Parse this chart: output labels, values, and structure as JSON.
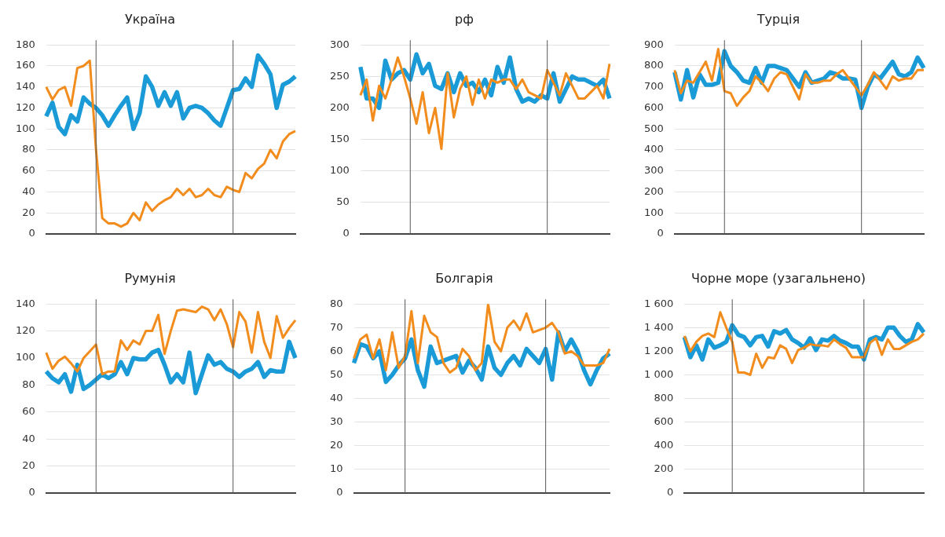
{
  "chart_data": [
    {
      "type": "line",
      "title": "Україна",
      "categories": [
        null,
        null,
        null,
        null,
        null,
        null,
        null,
        null,
        null,
        null,
        null,
        null,
        null,
        null,
        null,
        null,
        null,
        null,
        null,
        null,
        null,
        null,
        null,
        null,
        null,
        null,
        null,
        null,
        null,
        null,
        null,
        null,
        null,
        null,
        null,
        null,
        null,
        null,
        null,
        null,
        null
      ],
      "ylim": [
        0,
        180
      ],
      "yticks": [
        0,
        20,
        40,
        60,
        80,
        100,
        120,
        140,
        160,
        180
      ],
      "grid": "y",
      "legend": false,
      "tick_labels": "y",
      "marker": "none",
      "line_style": "solid",
      "series": [
        {
          "color": "#1a9bd7",
          "values": [
            112,
            125,
            102,
            95,
            113,
            107,
            130,
            124,
            120,
            113,
            103,
            113,
            122,
            130,
            100,
            115,
            150,
            140,
            122,
            135,
            122,
            135,
            110,
            120,
            122,
            120,
            115,
            108,
            103,
            120,
            137,
            138,
            148,
            140,
            170,
            162,
            152,
            120,
            142,
            145,
            150
          ]
        },
        {
          "color": "#f28c1c",
          "values": [
            140,
            128,
            137,
            140,
            122,
            158,
            160,
            165,
            80,
            15,
            10,
            10,
            7,
            10,
            20,
            13,
            30,
            22,
            28,
            32,
            35,
            43,
            37,
            43,
            35,
            37,
            43,
            37,
            35,
            45,
            42,
            40,
            58,
            53,
            62,
            67,
            80,
            72,
            88,
            95,
            98
          ]
        }
      ]
    },
    {
      "type": "line",
      "title": "рф",
      "categories": [
        null,
        null,
        null,
        null,
        null,
        null,
        null,
        null,
        null,
        null,
        null,
        null,
        null,
        null,
        null,
        null,
        null,
        null,
        null,
        null,
        null,
        null,
        null,
        null,
        null,
        null,
        null,
        null,
        null,
        null,
        null,
        null,
        null,
        null,
        null,
        null,
        null,
        null,
        null,
        null,
        null
      ],
      "ylim": [
        0,
        300
      ],
      "yticks": [
        0,
        50,
        100,
        150,
        200,
        250,
        300
      ],
      "grid": "y",
      "legend": false,
      "tick_labels": "y",
      "marker": "none",
      "line_style": "solid",
      "series": [
        {
          "color": "#1a9bd7",
          "values": [
            265,
            215,
            215,
            200,
            275,
            245,
            255,
            260,
            245,
            285,
            255,
            270,
            235,
            230,
            255,
            225,
            255,
            235,
            240,
            225,
            245,
            220,
            265,
            240,
            280,
            230,
            210,
            215,
            210,
            220,
            215,
            255,
            210,
            230,
            250,
            245,
            245,
            240,
            235,
            245,
            215
          ]
        },
        {
          "color": "#f28c1c",
          "values": [
            220,
            245,
            180,
            235,
            215,
            245,
            280,
            250,
            215,
            175,
            225,
            160,
            200,
            135,
            255,
            185,
            230,
            250,
            205,
            245,
            215,
            245,
            240,
            245,
            245,
            230,
            245,
            225,
            220,
            215,
            260,
            240,
            220,
            255,
            235,
            215,
            215,
            225,
            235,
            215,
            270
          ]
        }
      ]
    },
    {
      "type": "line",
      "title": "Турція",
      "categories": [
        null,
        null,
        null,
        null,
        null,
        null,
        null,
        null,
        null,
        null,
        null,
        null,
        null,
        null,
        null,
        null,
        null,
        null,
        null,
        null,
        null,
        null,
        null,
        null,
        null,
        null,
        null,
        null,
        null,
        null,
        null,
        null,
        null,
        null,
        null,
        null,
        null,
        null,
        null,
        null,
        null
      ],
      "ylim": [
        0,
        900
      ],
      "yticks": [
        0,
        100,
        200,
        300,
        400,
        500,
        600,
        700,
        800,
        900
      ],
      "grid": "y",
      "legend": false,
      "tick_labels": "y",
      "marker": "none",
      "line_style": "solid",
      "series": [
        {
          "color": "#1a9bd7",
          "values": [
            770,
            640,
            780,
            650,
            760,
            710,
            710,
            720,
            870,
            800,
            770,
            730,
            720,
            790,
            720,
            800,
            800,
            790,
            780,
            740,
            700,
            770,
            720,
            730,
            740,
            770,
            760,
            740,
            740,
            735,
            600,
            700,
            760,
            740,
            780,
            820,
            760,
            750,
            770,
            840,
            790
          ]
        },
        {
          "color": "#f28c1c",
          "values": [
            780,
            670,
            730,
            720,
            770,
            820,
            730,
            880,
            680,
            670,
            610,
            650,
            680,
            750,
            720,
            680,
            740,
            770,
            760,
            700,
            640,
            760,
            720,
            720,
            730,
            730,
            760,
            780,
            740,
            700,
            660,
            710,
            770,
            730,
            690,
            750,
            730,
            740,
            740,
            780,
            780
          ]
        }
      ]
    },
    {
      "type": "line",
      "title": "Румунія",
      "categories": [
        null,
        null,
        null,
        null,
        null,
        null,
        null,
        null,
        null,
        null,
        null,
        null,
        null,
        null,
        null,
        null,
        null,
        null,
        null,
        null,
        null,
        null,
        null,
        null,
        null,
        null,
        null,
        null,
        null,
        null,
        null,
        null,
        null,
        null,
        null,
        null,
        null,
        null,
        null,
        null,
        null
      ],
      "ylim": [
        0,
        140
      ],
      "yticks": [
        0,
        20,
        40,
        60,
        80,
        100,
        120,
        140
      ],
      "grid": "y",
      "legend": false,
      "tick_labels": "y",
      "marker": "none",
      "line_style": "solid",
      "series": [
        {
          "color": "#1a9bd7",
          "values": [
            90,
            85,
            82,
            88,
            75,
            95,
            77,
            80,
            84,
            88,
            85,
            88,
            97,
            88,
            100,
            99,
            99,
            104,
            106,
            95,
            82,
            88,
            82,
            104,
            74,
            88,
            102,
            95,
            97,
            92,
            90,
            86,
            90,
            92,
            97,
            86,
            91,
            90,
            90,
            112,
            100
          ]
        },
        {
          "color": "#f28c1c",
          "values": [
            104,
            92,
            98,
            101,
            96,
            90,
            100,
            105,
            110,
            88,
            90,
            90,
            113,
            106,
            113,
            110,
            120,
            120,
            132,
            103,
            120,
            135,
            136,
            135,
            134,
            138,
            136,
            128,
            136,
            125,
            108,
            134,
            127,
            104,
            134,
            112,
            100,
            131,
            115,
            122,
            128
          ]
        }
      ]
    },
    {
      "type": "line",
      "title": "Болгарія",
      "categories": [
        null,
        null,
        null,
        null,
        null,
        null,
        null,
        null,
        null,
        null,
        null,
        null,
        null,
        null,
        null,
        null,
        null,
        null,
        null,
        null,
        null,
        null,
        null,
        null,
        null,
        null,
        null,
        null,
        null,
        null,
        null,
        null,
        null,
        null,
        null,
        null,
        null,
        null,
        null,
        null,
        null
      ],
      "ylim": [
        0,
        80
      ],
      "yticks": [
        0,
        10,
        20,
        30,
        40,
        50,
        60,
        70,
        80
      ],
      "grid": "y",
      "legend": false,
      "tick_labels": "y",
      "marker": "none",
      "line_style": "solid",
      "series": [
        {
          "color": "#1a9bd7",
          "values": [
            55,
            63,
            62,
            57,
            60,
            47,
            50,
            54,
            57,
            65,
            52,
            45,
            62,
            55,
            56,
            57,
            58,
            51,
            56,
            53,
            48,
            62,
            53,
            50,
            55,
            58,
            54,
            61,
            58,
            55,
            61,
            48,
            68,
            60,
            65,
            60,
            52,
            46,
            52,
            57,
            59
          ]
        },
        {
          "color": "#f28c1c",
          "values": [
            57,
            65,
            67,
            57,
            65,
            52,
            68,
            53,
            58,
            77,
            55,
            75,
            68,
            66,
            55,
            51,
            53,
            61,
            58,
            52,
            55,
            80,
            64,
            60,
            70,
            73,
            69,
            76,
            68,
            69,
            70,
            72,
            68,
            59,
            60,
            58,
            54,
            54,
            54,
            55,
            61
          ]
        }
      ]
    },
    {
      "type": "line",
      "title": "Чорне море (узагальнено)",
      "categories": [
        null,
        null,
        null,
        null,
        null,
        null,
        null,
        null,
        null,
        null,
        null,
        null,
        null,
        null,
        null,
        null,
        null,
        null,
        null,
        null,
        null,
        null,
        null,
        null,
        null,
        null,
        null,
        null,
        null,
        null,
        null,
        null,
        null,
        null,
        null,
        null,
        null,
        null,
        null,
        null,
        null
      ],
      "ylim": [
        0,
        1600
      ],
      "yticks": [
        0,
        200,
        400,
        600,
        800,
        {
          "value": 1000,
          "label": "1 000"
        },
        {
          "value": 1200,
          "label": "1 200"
        },
        {
          "value": 1400,
          "label": "1 400"
        },
        {
          "value": 1600,
          "label": "1 600"
        }
      ],
      "grid": "y",
      "legend": false,
      "tick_labels": "y",
      "marker": "none",
      "line_style": "solid",
      "series": [
        {
          "color": "#1a9bd7",
          "values": [
            1320,
            1150,
            1250,
            1130,
            1300,
            1230,
            1250,
            1280,
            1420,
            1340,
            1320,
            1250,
            1320,
            1330,
            1240,
            1370,
            1350,
            1380,
            1300,
            1270,
            1230,
            1310,
            1210,
            1300,
            1290,
            1330,
            1290,
            1270,
            1240,
            1240,
            1130,
            1300,
            1320,
            1300,
            1400,
            1400,
            1330,
            1280,
            1300,
            1430,
            1360
          ]
        },
        {
          "color": "#f28c1c",
          "values": [
            1330,
            1200,
            1280,
            1330,
            1350,
            1320,
            1530,
            1400,
            1280,
            1020,
            1020,
            1000,
            1180,
            1060,
            1150,
            1140,
            1250,
            1220,
            1100,
            1210,
            1230,
            1260,
            1250,
            1250,
            1240,
            1300,
            1260,
            1230,
            1150,
            1150,
            1150,
            1270,
            1310,
            1170,
            1300,
            1220,
            1220,
            1250,
            1280,
            1300,
            1350
          ]
        }
      ]
    }
  ]
}
